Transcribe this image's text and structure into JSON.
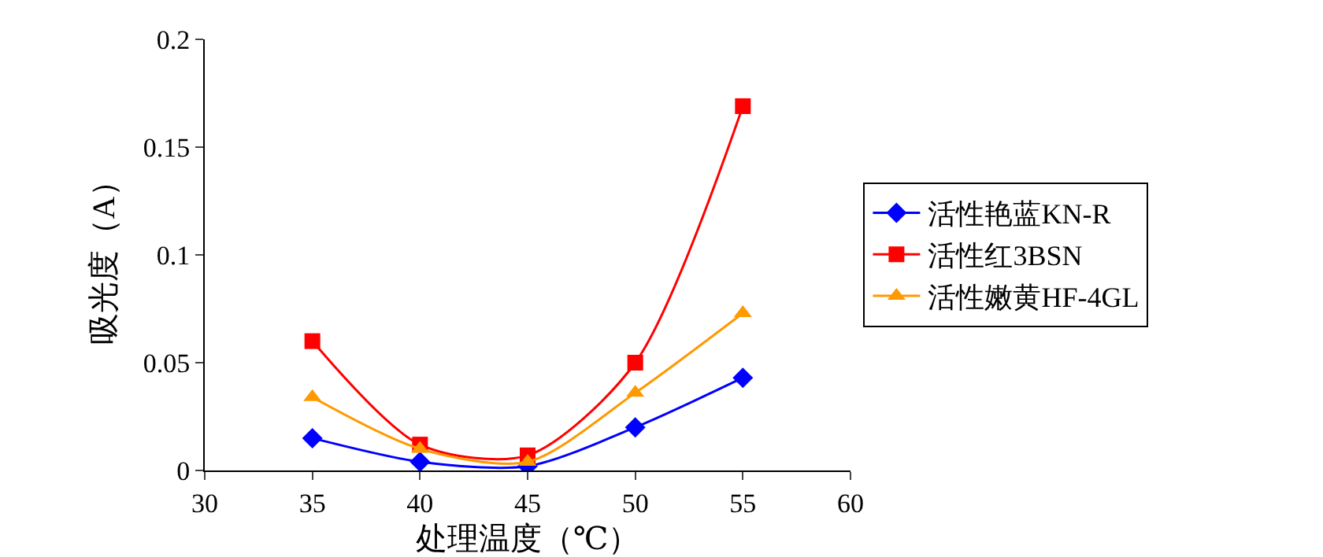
{
  "chart_data": {
    "type": "line",
    "xlabel": "处理温度（℃）",
    "ylabel": "吸光度（A）",
    "x": [
      35,
      40,
      45,
      50,
      55
    ],
    "series": [
      {
        "name": "活性艳蓝KN-R",
        "color": "#0000ff",
        "marker": "diamond",
        "values": [
          0.015,
          0.004,
          0.002,
          0.02,
          0.043
        ]
      },
      {
        "name": "活性红3BSN",
        "color": "#ff0000",
        "marker": "square",
        "values": [
          0.06,
          0.012,
          0.007,
          0.05,
          0.169
        ]
      },
      {
        "name": "活性嫩黄HF-4GL",
        "color": "#ff9900",
        "marker": "triangle",
        "values": [
          0.034,
          0.01,
          0.004,
          0.036,
          0.073
        ]
      }
    ],
    "xlim": [
      30,
      60
    ],
    "xticks": [
      30,
      35,
      40,
      45,
      50,
      55,
      60
    ],
    "ylim": [
      0,
      0.2
    ],
    "yticks": [
      0,
      0.05,
      0.1,
      0.15,
      0.2
    ],
    "grid": false,
    "legend": "right",
    "line_style": "solid"
  }
}
